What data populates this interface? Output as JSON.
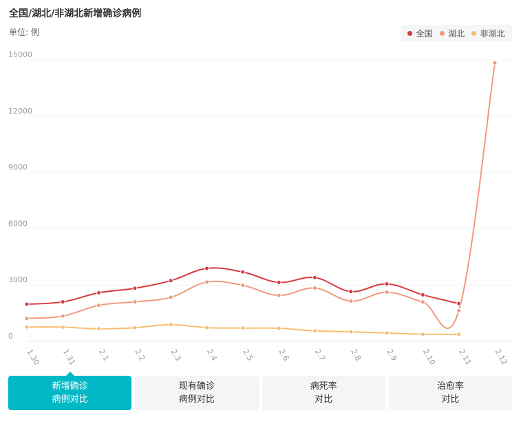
{
  "title": "全国/湖北/非湖北新增确诊病例",
  "unit_label": "单位: 例",
  "tabs": [
    {
      "line1": "新增确诊",
      "line2": "病例对比",
      "active": true
    },
    {
      "line1": "现有确诊",
      "line2": "病例对比",
      "active": false
    },
    {
      "line1": "病死率",
      "line2": "对比",
      "active": false
    },
    {
      "line1": "治愈率",
      "line2": "对比",
      "active": false
    }
  ],
  "chart_data": {
    "type": "line",
    "categories": [
      "1.30",
      "1.31",
      "2.1",
      "2.2",
      "2.3",
      "2.4",
      "2.5",
      "2.6",
      "2.7",
      "2.8",
      "2.9",
      "2.10",
      "2.11",
      "2.12"
    ],
    "ylim": [
      0,
      15000
    ],
    "yticks": [
      0,
      3000,
      6000,
      9000,
      12000,
      15000
    ],
    "legend_position": "top-right",
    "smooth": true,
    "series": [
      {
        "name": "全国",
        "color": "#d6393f",
        "values": [
          1982,
          2102,
          2590,
          2829,
          3235,
          3887,
          3694,
          3143,
          3399,
          2656,
          3062,
          2478,
          2015,
          null
        ]
      },
      {
        "name": "湖北",
        "color": "#f09a7d",
        "values": [
          1220,
          1347,
          1921,
          2103,
          2345,
          3156,
          2987,
          2447,
          2841,
          2147,
          2618,
          2097,
          1638,
          14840
        ]
      },
      {
        "name": "非湖北",
        "color": "#f7bd6e",
        "values": [
          762,
          755,
          669,
          726,
          890,
          731,
          707,
          696,
          558,
          509,
          444,
          381,
          377,
          null
        ]
      }
    ]
  }
}
